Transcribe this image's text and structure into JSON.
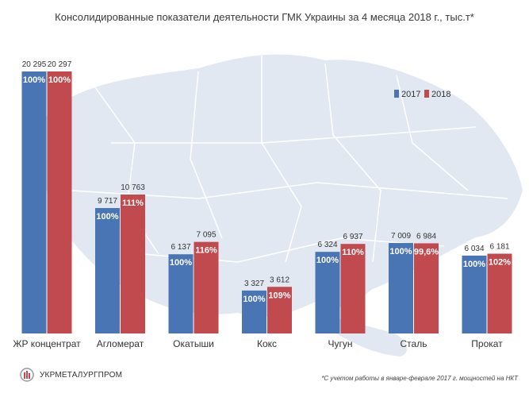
{
  "title": "Консолидированные показатели деятельности ГМК Украины за 4 месяца 2018 г., тыс.т*",
  "footnote": "*С учетом работы в январе-феврале  2017  г. мощностей на НКТ",
  "logo_text": "УКРМЕТАЛУРГПРОМ",
  "colors": {
    "y2017": "#4a75b5",
    "y2018": "#c04a4e",
    "map": "#e1e8f2",
    "map_stroke": "#ffffff"
  },
  "chart_data": {
    "type": "bar",
    "title": "Консолидированные показатели деятельности ГМК Украины за 4 месяца 2018 г., тыс.т*",
    "categories": [
      "ЖР концентрат",
      "Агломерат",
      "Окатыши",
      "Кокс",
      "Чугун",
      "Сталь",
      "Прокат"
    ],
    "series": [
      {
        "name": "2017",
        "values": [
          20295,
          9717,
          6137,
          3327,
          6324,
          7009,
          6034
        ],
        "value_labels": [
          "20 295",
          "9 717",
          "6 137",
          "3 327",
          "6 324",
          "7 009",
          "6 034"
        ],
        "pct_labels": [
          "100%",
          "100%",
          "100%",
          "100%",
          "100%",
          "100%",
          "100%"
        ]
      },
      {
        "name": "2018",
        "values": [
          20297,
          10763,
          7095,
          3612,
          6937,
          6984,
          6181
        ],
        "value_labels": [
          "20 297",
          "10 763",
          "7 095",
          "3 612",
          "6 937",
          "6 984",
          "6 181"
        ],
        "pct_labels": [
          "100%",
          "111%",
          "116%",
          "109%",
          "110%",
          "99,6%",
          "102%"
        ]
      }
    ],
    "legend_position": "top-right",
    "grid": false,
    "ylim": [
      0,
      20300
    ]
  }
}
